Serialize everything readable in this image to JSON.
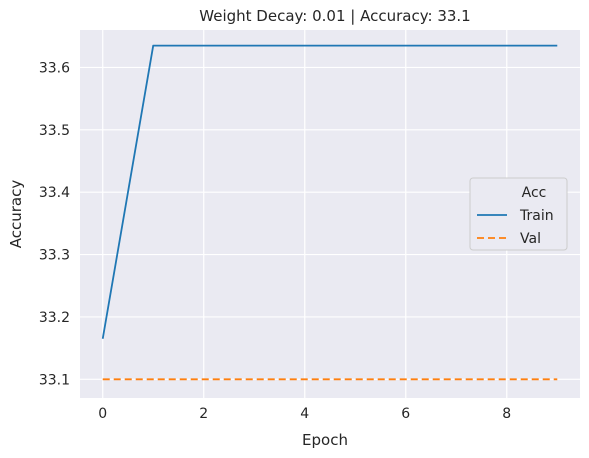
{
  "chart_data": {
    "type": "line",
    "title": "Weight Decay: 0.01 | Accuracy: 33.1",
    "xlabel": "Epoch",
    "ylabel": "Accuracy",
    "x": [
      0,
      1,
      2,
      3,
      4,
      5,
      6,
      7,
      8,
      9
    ],
    "xlim": [
      -0.45,
      9.45
    ],
    "ylim": [
      33.07,
      33.66
    ],
    "xticks": [
      0,
      2,
      4,
      6,
      8
    ],
    "yticks": [
      33.1,
      33.2,
      33.3,
      33.4,
      33.5,
      33.6
    ],
    "ytick_labels": [
      "33.1",
      "33.2",
      "33.3",
      "33.4",
      "33.5",
      "33.6"
    ],
    "xtick_labels": [
      "0",
      "2",
      "4",
      "6",
      "8"
    ],
    "grid": true,
    "legend": {
      "title": "Acc",
      "placement": "center-right"
    },
    "series": [
      {
        "name": "Train",
        "color": "#1f77b4",
        "style": "solid",
        "values": [
          33.165,
          33.635,
          33.635,
          33.635,
          33.635,
          33.635,
          33.635,
          33.635,
          33.635,
          33.635
        ]
      },
      {
        "name": "Val",
        "color": "#ff7f0e",
        "style": "dashed",
        "values": [
          33.1,
          33.1,
          33.1,
          33.1,
          33.1,
          33.1,
          33.1,
          33.1,
          33.1,
          33.1
        ]
      }
    ]
  }
}
